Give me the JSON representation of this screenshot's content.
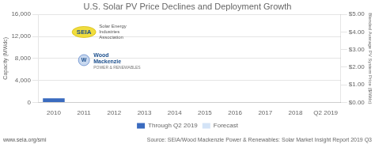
{
  "chart_data": {
    "type": "bar",
    "title": "U.S. Solar PV Price Declines and Deployment Growth",
    "y_label": "Capacity (MWdc)",
    "y2_label": "Blended Average PV System Price ($/Wdc)",
    "categories": [
      "2010",
      "2011",
      "2012",
      "2013",
      "2014",
      "2015",
      "2016",
      "2017",
      "2018",
      "Q2 2019"
    ],
    "series": [
      {
        "name": "Through Q2 2019",
        "color": "#3a6bbf",
        "values": [
          750,
          null,
          null,
          null,
          null,
          null,
          null,
          null,
          null,
          null
        ]
      },
      {
        "name": "Forecast",
        "color": "#d4e4f7",
        "values": [
          null,
          null,
          null,
          null,
          null,
          null,
          null,
          null,
          null,
          null
        ]
      }
    ],
    "ylim": [
      0,
      16000
    ],
    "yticks": [
      0,
      {
        "value": 4000,
        "label": "4,000"
      },
      {
        "value": 8000,
        "label": "8,000"
      },
      {
        "value": 12000,
        "label": "12,000"
      },
      {
        "value": 16000,
        "label": "16,000"
      }
    ],
    "y2lim": [
      0.0,
      5.0
    ],
    "y2ticks": [
      {
        "value": 0.0,
        "label": "$0.00"
      },
      {
        "value": 1.0,
        "label": "$1.00"
      },
      {
        "value": 2.0,
        "label": "$2.00"
      },
      {
        "value": 3.0,
        "label": "$3.00"
      },
      {
        "value": 4.0,
        "label": "$4.00"
      },
      {
        "value": 5.0,
        "label": "$5.00"
      }
    ],
    "grid": true,
    "legend": "bottom",
    "annotations": [
      "SEIA",
      "Solar Energy\nIndustries\nAssociation",
      "W",
      "Wood\nMackenzie",
      "POWER & RENEWABLES",
      "www.seia.org/smi",
      "Source: SEIA/Wood Mackenzie Power & Renewables: Solar Market Insight Report 2019 Q3"
    ]
  }
}
